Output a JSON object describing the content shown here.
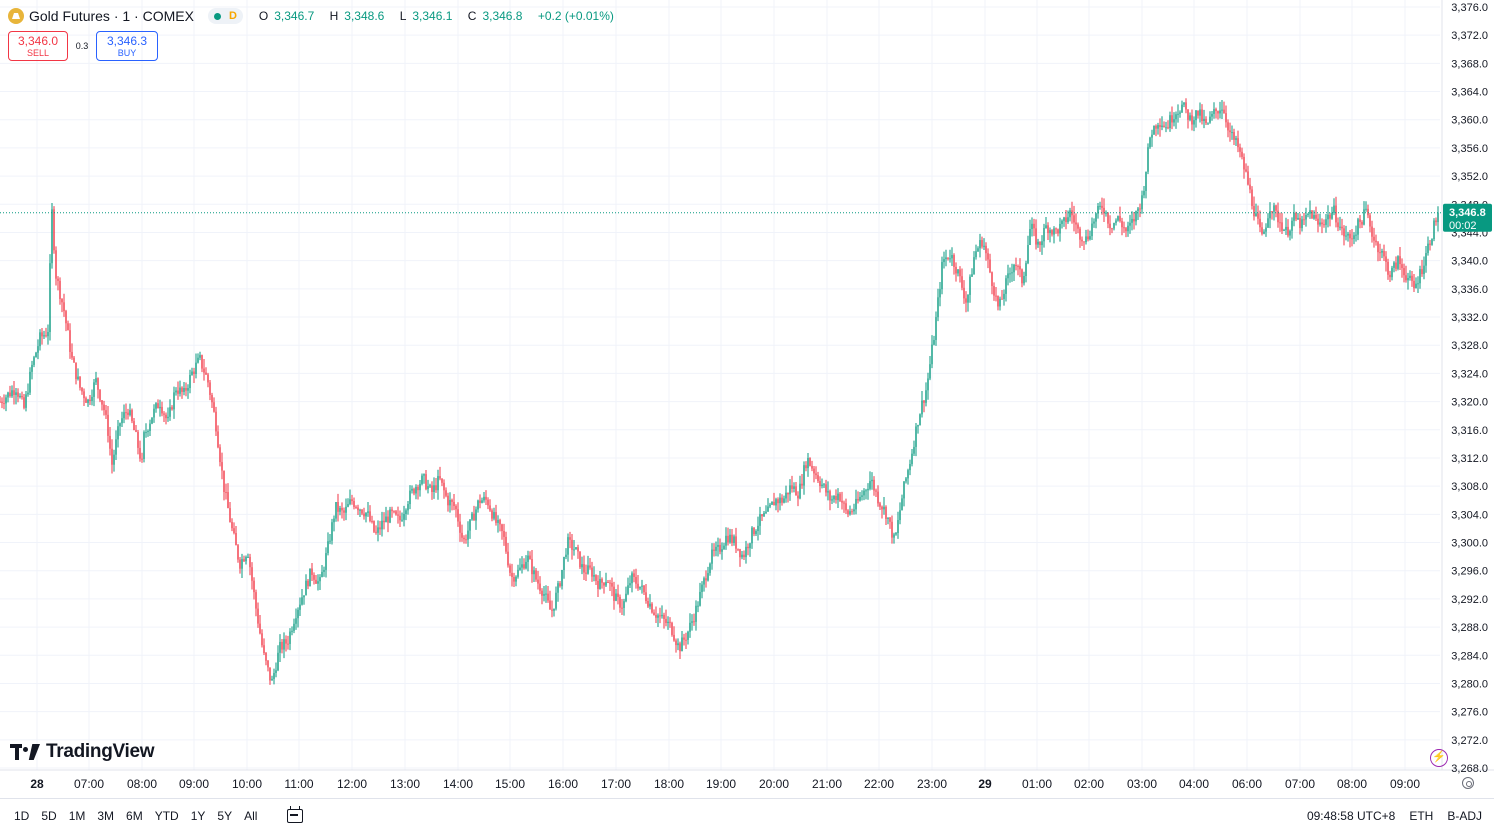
{
  "symbol": {
    "name": "Gold Futures · 1 · COMEX",
    "status_badge": "D"
  },
  "ohlc": {
    "open_label": "O",
    "open": "3,346.7",
    "high_label": "H",
    "high": "3,348.6",
    "low_label": "L",
    "low": "3,346.1",
    "close_label": "C",
    "close": "3,346.8",
    "change": "+0.2 (+0.01%)"
  },
  "trade": {
    "sell_price": "3,346.0",
    "sell_label": "SELL",
    "spread": "0.3",
    "buy_price": "3,346.3",
    "buy_label": "BUY"
  },
  "branding": {
    "logo_text": "TradingView"
  },
  "bottom_bar": {
    "ranges": [
      "1D",
      "5D",
      "1M",
      "3M",
      "6M",
      "YTD",
      "1Y",
      "5Y",
      "All"
    ],
    "clock": "09:48:58 UTC+8",
    "session": "ETH",
    "adjust": "B-ADJ"
  },
  "colors": {
    "up": "#089981",
    "down": "#f23645",
    "grid": "#f0f3fa",
    "axis_text": "#131722"
  },
  "chart_data": {
    "type": "candlestick",
    "title": "Gold Futures · 1 · COMEX",
    "ylim": [
      3268,
      3376
    ],
    "y_ticks": [
      "3,376.0",
      "3,372.0",
      "3,368.0",
      "3,364.0",
      "3,360.0",
      "3,356.0",
      "3,352.0",
      "3,348.0",
      "3,344.0",
      "3,340.0",
      "3,336.0",
      "3,332.0",
      "3,328.0",
      "3,324.0",
      "3,320.0",
      "3,316.0",
      "3,312.0",
      "3,308.0",
      "3,304.0",
      "3,300.0",
      "3,296.0",
      "3,292.0",
      "3,288.0",
      "3,284.0",
      "3,280.0",
      "3,276.0",
      "3,272.0",
      "3,268.0"
    ],
    "x_ticks": [
      "28",
      "07:00",
      "08:00",
      "09:00",
      "10:00",
      "11:00",
      "12:00",
      "13:00",
      "14:00",
      "15:00",
      "16:00",
      "17:00",
      "18:00",
      "19:00",
      "20:00",
      "21:00",
      "22:00",
      "23:00",
      "29",
      "01:00",
      "02:00",
      "03:00",
      "04:00",
      "06:00",
      "07:00",
      "08:00",
      "09:00"
    ],
    "x_tick_bold": [
      "28",
      "29"
    ],
    "last_price": 3346.8,
    "last_price_label": "3,346.8",
    "countdown": "00:02",
    "path": [
      [
        0,
        3320
      ],
      [
        2,
        3322
      ],
      [
        3,
        3319
      ],
      [
        4,
        3325
      ],
      [
        5,
        3329
      ],
      [
        6,
        3330
      ],
      [
        6.5,
        3347
      ],
      [
        7,
        3338
      ],
      [
        8,
        3333
      ],
      [
        9,
        3326
      ],
      [
        10,
        3322
      ],
      [
        11,
        3320
      ],
      [
        12,
        3323
      ],
      [
        13,
        3319
      ],
      [
        13.5,
        3316
      ],
      [
        14,
        3311
      ],
      [
        15,
        3317
      ],
      [
        16,
        3319
      ],
      [
        17,
        3315
      ],
      [
        17.8,
        3311
      ],
      [
        18,
        3315
      ],
      [
        19,
        3318
      ],
      [
        20,
        3320
      ],
      [
        21,
        3317
      ],
      [
        22,
        3322
      ],
      [
        23,
        3321
      ],
      [
        24,
        3324
      ],
      [
        25,
        3326
      ],
      [
        26,
        3323
      ],
      [
        27,
        3317
      ],
      [
        28,
        3308
      ],
      [
        29,
        3302
      ],
      [
        30,
        3297
      ],
      [
        31,
        3299
      ],
      [
        32,
        3291
      ],
      [
        33,
        3284
      ],
      [
        34,
        3280
      ],
      [
        35,
        3285
      ],
      [
        36,
        3286
      ],
      [
        37,
        3290
      ],
      [
        38,
        3293
      ],
      [
        39,
        3296
      ],
      [
        40,
        3294
      ],
      [
        41,
        3299
      ],
      [
        42,
        3305
      ],
      [
        43,
        3304
      ],
      [
        44,
        3306
      ],
      [
        45,
        3305
      ],
      [
        46,
        3304
      ],
      [
        47,
        3301
      ],
      [
        48,
        3303
      ],
      [
        49,
        3304
      ],
      [
        50,
        3303
      ],
      [
        51,
        3306
      ],
      [
        52,
        3308
      ],
      [
        53,
        3309
      ],
      [
        54,
        3307
      ],
      [
        55,
        3309
      ],
      [
        56,
        3306
      ],
      [
        57,
        3305
      ],
      [
        58,
        3300
      ],
      [
        59,
        3303
      ],
      [
        60,
        3306
      ],
      [
        61,
        3306
      ],
      [
        62,
        3303
      ],
      [
        63,
        3301
      ],
      [
        64,
        3295
      ],
      [
        65,
        3296
      ],
      [
        66,
        3298
      ],
      [
        67,
        3295
      ],
      [
        68,
        3293
      ],
      [
        69,
        3290
      ],
      [
        70,
        3294
      ],
      [
        71,
        3300
      ],
      [
        72,
        3299
      ],
      [
        73,
        3296
      ],
      [
        74,
        3296
      ],
      [
        75,
        3294
      ],
      [
        76,
        3295
      ],
      [
        77,
        3292
      ],
      [
        78,
        3291
      ],
      [
        79,
        3295
      ],
      [
        80,
        3294
      ],
      [
        81,
        3292
      ],
      [
        82,
        3290
      ],
      [
        83,
        3289
      ],
      [
        84,
        3288
      ],
      [
        85,
        3285
      ],
      [
        86,
        3287
      ],
      [
        87,
        3290
      ],
      [
        88,
        3294
      ],
      [
        89,
        3298
      ],
      [
        90,
        3299
      ],
      [
        91,
        3301
      ],
      [
        92,
        3300
      ],
      [
        93,
        3298
      ],
      [
        94,
        3301
      ],
      [
        95,
        3303
      ],
      [
        96,
        3304
      ],
      [
        97,
        3306
      ],
      [
        98,
        3306
      ],
      [
        99,
        3308
      ],
      [
        100,
        3307
      ],
      [
        101,
        3312
      ],
      [
        102,
        3310
      ],
      [
        103,
        3308
      ],
      [
        104,
        3306
      ],
      [
        105,
        3307
      ],
      [
        106,
        3304
      ],
      [
        107,
        3305
      ],
      [
        108,
        3307
      ],
      [
        109,
        3309
      ],
      [
        110,
        3306
      ],
      [
        111,
        3304
      ],
      [
        112,
        3300
      ],
      [
        113,
        3307
      ],
      [
        114,
        3312
      ],
      [
        115,
        3318
      ],
      [
        116,
        3322
      ],
      [
        117,
        3330
      ],
      [
        118,
        3340
      ],
      [
        119,
        3341
      ],
      [
        120,
        3338
      ],
      [
        121,
        3334
      ],
      [
        122,
        3341
      ],
      [
        123,
        3343
      ],
      [
        124,
        3338
      ],
      [
        125,
        3333
      ],
      [
        126,
        3337
      ],
      [
        127,
        3340
      ],
      [
        128,
        3337
      ],
      [
        129,
        3345
      ],
      [
        130,
        3342
      ],
      [
        131,
        3345
      ],
      [
        132,
        3344
      ],
      [
        133,
        3345
      ],
      [
        134,
        3347
      ],
      [
        135,
        3344
      ],
      [
        136,
        3343
      ],
      [
        137,
        3346
      ],
      [
        138,
        3348
      ],
      [
        139,
        3345
      ],
      [
        140,
        3346
      ],
      [
        141,
        3344
      ],
      [
        142,
        3346
      ],
      [
        143,
        3349
      ],
      [
        144,
        3358
      ],
      [
        145,
        3360
      ],
      [
        146,
        3359
      ],
      [
        147,
        3361
      ],
      [
        148,
        3362
      ],
      [
        149,
        3360
      ],
      [
        150,
        3361
      ],
      [
        151,
        3359
      ],
      [
        152,
        3361
      ],
      [
        153,
        3362
      ],
      [
        154,
        3358
      ],
      [
        155,
        3356
      ],
      [
        156,
        3352
      ],
      [
        157,
        3347
      ],
      [
        158,
        3343
      ],
      [
        159,
        3348
      ],
      [
        160,
        3346
      ],
      [
        161,
        3344
      ],
      [
        162,
        3346
      ],
      [
        163,
        3345
      ],
      [
        164,
        3347
      ],
      [
        165,
        3345
      ],
      [
        166,
        3346
      ],
      [
        167,
        3347
      ],
      [
        168,
        3344
      ],
      [
        169,
        3343
      ],
      [
        170,
        3345
      ],
      [
        171,
        3347
      ],
      [
        172,
        3343
      ],
      [
        173,
        3341
      ],
      [
        174,
        3338
      ],
      [
        175,
        3340
      ],
      [
        176,
        3338
      ],
      [
        177,
        3336
      ],
      [
        178,
        3339
      ],
      [
        179,
        3343
      ],
      [
        180,
        3346.8
      ]
    ]
  }
}
